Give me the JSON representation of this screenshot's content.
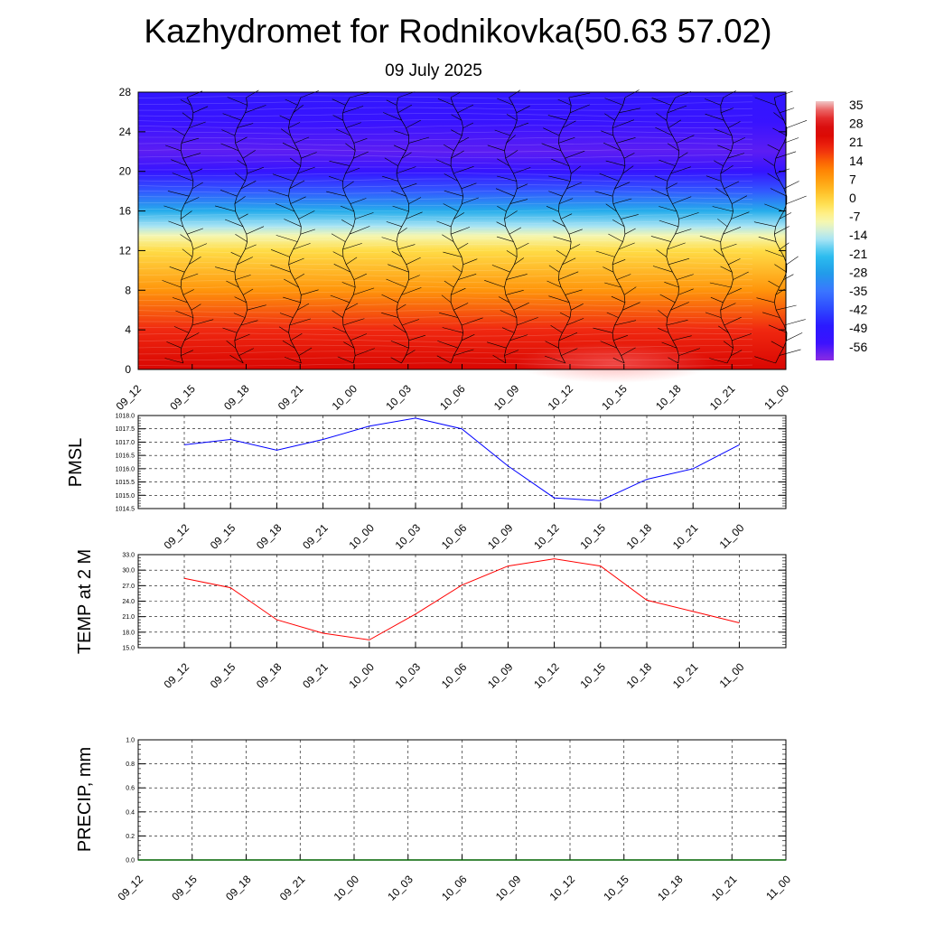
{
  "title": "Kazhydromet for Rodnikovka(50.63 57.02)",
  "subtitle": "09 July 2025",
  "colors": {
    "pmsl_line": "#0000ff",
    "temp_line": "#ff0000",
    "precip_line": "#006400",
    "barbs": "#000000"
  },
  "chart_data": [
    {
      "type": "heatmap",
      "name": "temperature-wind-cross-section",
      "y_ticks": [
        "0",
        "4",
        "8",
        "12",
        "16",
        "20",
        "24",
        "28"
      ],
      "ylim": [
        0,
        28
      ],
      "x_ticks": [
        "09_12",
        "09_15",
        "09_18",
        "09_21",
        "10_00",
        "10_03",
        "10_06",
        "10_09",
        "10_12",
        "10_15",
        "10_18",
        "10_21",
        "11_00"
      ],
      "colorbar_labels": [
        "35",
        "28",
        "21",
        "14",
        "7",
        "0",
        "-7",
        "-14",
        "-21",
        "-28",
        "-35",
        "-42",
        "-49",
        "-56"
      ],
      "colorbar_range": [
        -63,
        40
      ],
      "temperature_profile": [
        {
          "level": 0,
          "value": 27
        },
        {
          "level": 4,
          "value": 21
        },
        {
          "level": 8,
          "value": 10
        },
        {
          "level": 12,
          "value": 0
        },
        {
          "level": 13.5,
          "value": -8
        },
        {
          "level": 14.5,
          "value": -15
        },
        {
          "level": 16,
          "value": -25
        },
        {
          "level": 18,
          "value": -40
        },
        {
          "level": 20,
          "value": -54
        },
        {
          "level": 22,
          "value": -59
        },
        {
          "level": 25,
          "value": -55
        },
        {
          "level": 28,
          "value": -52
        }
      ],
      "grid": false
    },
    {
      "type": "line",
      "name": "pmsl",
      "ylabel": "PMSL",
      "categories": [
        "09_12",
        "09_15",
        "09_18",
        "09_21",
        "10_00",
        "10_03",
        "10_06",
        "10_09",
        "10_12",
        "10_15",
        "10_18",
        "10_21",
        "11_00"
      ],
      "values": [
        1016.9,
        1017.1,
        1016.7,
        1017.1,
        1017.6,
        1017.9,
        1017.5,
        1016.1,
        1014.9,
        1014.8,
        1015.6,
        1016.0,
        1016.9
      ],
      "ylim": [
        1014.5,
        1018.0
      ],
      "y_ticks": [
        "1014.5",
        "1015.0",
        "1015.5",
        "1016.0",
        "1016.5",
        "1017.0",
        "1017.5",
        "1018.0"
      ],
      "grid": true
    },
    {
      "type": "line",
      "name": "temp-2m",
      "ylabel": "TEMP at 2 M",
      "categories": [
        "09_12",
        "09_15",
        "09_18",
        "09_21",
        "10_00",
        "10_03",
        "10_06",
        "10_09",
        "10_12",
        "10_15",
        "10_18",
        "10_21",
        "11_00"
      ],
      "values": [
        28.4,
        26.6,
        20.4,
        17.8,
        16.5,
        21.5,
        27.1,
        30.8,
        32.2,
        30.8,
        24.2,
        22.0,
        19.8
      ],
      "ylim": [
        15.0,
        33.0
      ],
      "y_ticks": [
        "15.0",
        "18.0",
        "21.0",
        "24.0",
        "27.0",
        "30.0",
        "33.0"
      ],
      "grid": true
    },
    {
      "type": "line",
      "name": "precip",
      "ylabel": "PRECIP, mm",
      "categories": [
        "09_12",
        "09_15",
        "09_18",
        "09_21",
        "10_00",
        "10_03",
        "10_06",
        "10_09",
        "10_12",
        "10_15",
        "10_18",
        "10_21",
        "11_00"
      ],
      "values": [
        0,
        0,
        0,
        0,
        0,
        0,
        0,
        0,
        0,
        0,
        0,
        0,
        0
      ],
      "ylim": [
        0,
        1.0
      ],
      "y_ticks": [
        "0.0",
        "0.2",
        "0.4",
        "0.6",
        "0.8",
        "1.0"
      ],
      "grid": true
    }
  ]
}
